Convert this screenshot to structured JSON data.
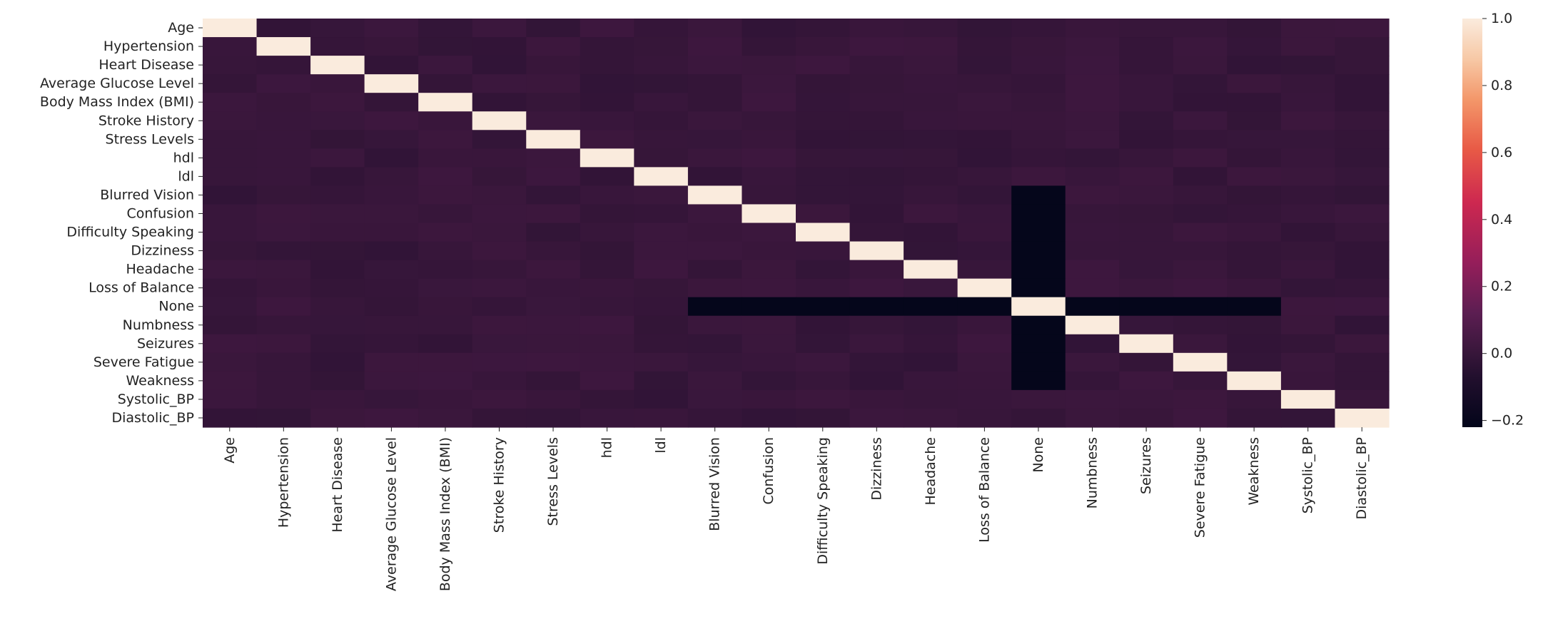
{
  "chart_data": {
    "type": "heatmap",
    "title": "",
    "xlabel": "",
    "ylabel": "",
    "variables": [
      "Age",
      "Hypertension",
      "Heart Disease",
      "Average Glucose Level",
      "Body Mass Index (BMI)",
      "Stroke History",
      "Stress Levels",
      "hdl",
      "ldl",
      "Blurred Vision",
      "Confusion",
      "Difficulty Speaking",
      "Dizziness",
      "Headache",
      "Loss of Balance",
      "None",
      "Numbness",
      "Seizures",
      "Severe Fatigue",
      "Weakness",
      "Systolic_BP",
      "Diastolic_BP"
    ],
    "background_value": 0.0,
    "diagonal_value": 1.0,
    "none_correlation_value": -0.21,
    "none_row_span": [
      9,
      19
    ],
    "none_col_span": [
      9,
      19
    ],
    "none_index": 15,
    "colorbar": {
      "min": -0.22,
      "max": 1.0,
      "ticks": [
        1.0,
        0.8,
        0.6,
        0.4,
        0.2,
        0.0,
        -0.2
      ],
      "tick_labels": [
        "1.0",
        "0.8",
        "0.6",
        "0.4",
        "0.2",
        "0.0",
        "−0.2"
      ],
      "colormap": "rocket"
    }
  }
}
